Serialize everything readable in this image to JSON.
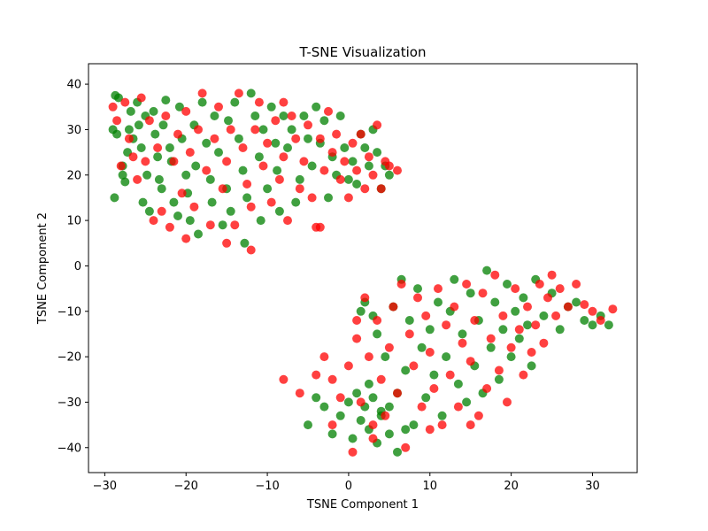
{
  "chart_data": {
    "type": "scatter",
    "title": "T-SNE Visualization",
    "xlabel": "TSNE Component 1",
    "ylabel": "TSNE Component 2",
    "xlim": [
      -32,
      35.5
    ],
    "ylim": [
      -45.5,
      44.5
    ],
    "xticks": [
      -30,
      -20,
      -10,
      0,
      10,
      20,
      30
    ],
    "yticks": [
      -40,
      -30,
      -20,
      -10,
      0,
      10,
      20,
      30,
      40
    ],
    "xtick_labels": [
      "−30",
      "−20",
      "−10",
      "0",
      "10",
      "20",
      "30"
    ],
    "ytick_labels": [
      "−40",
      "−30",
      "−20",
      "−10",
      "0",
      "10",
      "20",
      "30",
      "40"
    ],
    "grid": false,
    "legend": "none",
    "colors": {
      "green": "#008000",
      "red": "#ff0000"
    },
    "marker_alpha": 0.75,
    "series": [
      {
        "color": "green",
        "points": [
          [
            -29,
            30
          ],
          [
            -28.7,
            37.5
          ],
          [
            -28.3,
            37
          ],
          [
            -28.5,
            29
          ],
          [
            -27.8,
            22
          ],
          [
            -27.5,
            18.5
          ],
          [
            -27.2,
            25
          ],
          [
            -27,
            30
          ],
          [
            -26.8,
            34
          ],
          [
            -26.5,
            28
          ],
          [
            -26,
            36
          ],
          [
            -25.8,
            31
          ],
          [
            -25.5,
            26
          ],
          [
            -25,
            33
          ],
          [
            -24.8,
            20
          ],
          [
            -24.5,
            12
          ],
          [
            -24,
            34
          ],
          [
            -23.8,
            29
          ],
          [
            -23.5,
            24
          ],
          [
            -23,
            17
          ],
          [
            -22.8,
            31
          ],
          [
            -22.5,
            36.5
          ],
          [
            -22,
            26
          ],
          [
            -21.8,
            23
          ],
          [
            -21.5,
            14
          ],
          [
            -21,
            11
          ],
          [
            -20.8,
            35
          ],
          [
            -20.5,
            28
          ],
          [
            -20,
            20
          ],
          [
            -19.8,
            16
          ],
          [
            -19.5,
            10
          ],
          [
            -19,
            31
          ],
          [
            -18.8,
            22
          ],
          [
            -18.5,
            7
          ],
          [
            -18,
            36
          ],
          [
            -17.5,
            27
          ],
          [
            -17,
            19
          ],
          [
            -16.8,
            14
          ],
          [
            -16.5,
            33
          ],
          [
            -16,
            25
          ],
          [
            -15.5,
            9
          ],
          [
            -15,
            17
          ],
          [
            -14.8,
            32
          ],
          [
            -14.5,
            12
          ],
          [
            -14,
            36
          ],
          [
            -13.5,
            28
          ],
          [
            -13,
            21
          ],
          [
            -12.8,
            5
          ],
          [
            -12.5,
            15
          ],
          [
            -12,
            38
          ],
          [
            -11.5,
            33
          ],
          [
            -11,
            24
          ],
          [
            -10.8,
            10
          ],
          [
            -10.5,
            30
          ],
          [
            -10,
            17
          ],
          [
            -9.5,
            35
          ],
          [
            -9,
            27
          ],
          [
            -8.8,
            21
          ],
          [
            -8.5,
            12
          ],
          [
            -8,
            33
          ],
          [
            -7.5,
            26
          ],
          [
            -7,
            30
          ],
          [
            -6.5,
            14
          ],
          [
            -6,
            19
          ],
          [
            -5.5,
            33
          ],
          [
            -5,
            28
          ],
          [
            -4.5,
            22
          ],
          [
            -4,
            35
          ],
          [
            -3.5,
            27
          ],
          [
            -3,
            32
          ],
          [
            -2.5,
            15
          ],
          [
            -2,
            24
          ],
          [
            -1.5,
            20
          ],
          [
            -1,
            33
          ],
          [
            -0.5,
            26
          ],
          [
            0,
            19
          ],
          [
            0.5,
            23
          ],
          [
            1,
            18
          ],
          [
            1.5,
            29
          ],
          [
            2,
            26
          ],
          [
            2.5,
            22
          ],
          [
            3,
            30
          ],
          [
            3.5,
            25
          ],
          [
            4,
            17
          ],
          [
            4.5,
            22
          ],
          [
            5,
            20
          ],
          [
            -28.8,
            15
          ],
          [
            -27.8,
            20
          ],
          [
            -25.3,
            14
          ],
          [
            -23.3,
            19
          ],
          [
            1.5,
            -10
          ],
          [
            2,
            -8
          ],
          [
            2.5,
            -26
          ],
          [
            3,
            -11
          ],
          [
            3.5,
            -15
          ],
          [
            4,
            -32
          ],
          [
            4.5,
            -20
          ],
          [
            5,
            -37
          ],
          [
            5.5,
            -9
          ],
          [
            6,
            -28
          ],
          [
            6.5,
            -3
          ],
          [
            7,
            -23
          ],
          [
            7.5,
            -12
          ],
          [
            8,
            -35
          ],
          [
            8.5,
            -5
          ],
          [
            9,
            -18
          ],
          [
            9.5,
            -29
          ],
          [
            10,
            -14
          ],
          [
            10.5,
            -24
          ],
          [
            11,
            -8
          ],
          [
            11.5,
            -33
          ],
          [
            12,
            -20
          ],
          [
            12.5,
            -10
          ],
          [
            13,
            -3
          ],
          [
            13.5,
            -26
          ],
          [
            14,
            -15
          ],
          [
            14.5,
            -30
          ],
          [
            15,
            -6
          ],
          [
            15.5,
            -22
          ],
          [
            16,
            -12
          ],
          [
            16.5,
            -28
          ],
          [
            17,
            -1
          ],
          [
            17.5,
            -18
          ],
          [
            18,
            -8
          ],
          [
            18.5,
            -25
          ],
          [
            19,
            -14
          ],
          [
            19.5,
            -4
          ],
          [
            20,
            -20
          ],
          [
            20.5,
            -10
          ],
          [
            21,
            -16
          ],
          [
            21.5,
            -7
          ],
          [
            22,
            -13
          ],
          [
            22.5,
            -22
          ],
          [
            23,
            -3
          ],
          [
            24,
            -11
          ],
          [
            25,
            -6
          ],
          [
            26,
            -14
          ],
          [
            27,
            -9
          ],
          [
            28,
            -8
          ],
          [
            29,
            -12
          ],
          [
            30,
            -13
          ],
          [
            31,
            -11
          ],
          [
            32,
            -13
          ],
          [
            -5,
            -35
          ],
          [
            -4,
            -29
          ],
          [
            -3,
            -31
          ],
          [
            -2,
            -37
          ],
          [
            -1,
            -33
          ],
          [
            0,
            -30
          ],
          [
            0.5,
            -38
          ],
          [
            1,
            -28
          ],
          [
            1.5,
            -34
          ],
          [
            2,
            -31
          ],
          [
            2.5,
            -36
          ],
          [
            3,
            -29
          ],
          [
            3.5,
            -39
          ],
          [
            4,
            -33
          ],
          [
            5,
            -31
          ],
          [
            6,
            -41
          ],
          [
            7,
            -36
          ]
        ]
      },
      {
        "color": "red",
        "points": [
          [
            -29,
            35
          ],
          [
            -28.5,
            32
          ],
          [
            -28,
            22
          ],
          [
            -27.5,
            36
          ],
          [
            -27,
            28
          ],
          [
            -26.5,
            24
          ],
          [
            -26,
            19
          ],
          [
            -25.5,
            37
          ],
          [
            -25,
            23
          ],
          [
            -24.5,
            32
          ],
          [
            -24,
            10
          ],
          [
            -23.5,
            26
          ],
          [
            -23,
            12
          ],
          [
            -22.5,
            33
          ],
          [
            -22,
            8.5
          ],
          [
            -21.5,
            23
          ],
          [
            -21,
            29
          ],
          [
            -20.5,
            16
          ],
          [
            -20,
            34
          ],
          [
            -19.5,
            25
          ],
          [
            -19,
            13
          ],
          [
            -18.5,
            30
          ],
          [
            -18,
            38
          ],
          [
            -17.5,
            21
          ],
          [
            -17,
            9
          ],
          [
            -16.5,
            28
          ],
          [
            -16,
            35
          ],
          [
            -15.5,
            17
          ],
          [
            -15,
            23
          ],
          [
            -14.5,
            30
          ],
          [
            -14,
            9
          ],
          [
            -13.5,
            38
          ],
          [
            -13,
            26
          ],
          [
            -12.5,
            18
          ],
          [
            -12,
            13
          ],
          [
            -11.5,
            30
          ],
          [
            -11,
            36
          ],
          [
            -10.5,
            22
          ],
          [
            -10,
            27
          ],
          [
            -9.5,
            14
          ],
          [
            -9,
            32
          ],
          [
            -8.5,
            19
          ],
          [
            -8,
            24
          ],
          [
            -7.5,
            10
          ],
          [
            -7,
            33
          ],
          [
            -6.5,
            28
          ],
          [
            -6,
            17
          ],
          [
            -5.5,
            23
          ],
          [
            -5,
            31
          ],
          [
            -4.5,
            15
          ],
          [
            -4,
            8.5
          ],
          [
            -3.5,
            28
          ],
          [
            -3,
            21
          ],
          [
            -2.5,
            34
          ],
          [
            -2,
            25
          ],
          [
            -1.5,
            29
          ],
          [
            -1,
            19
          ],
          [
            -0.5,
            23
          ],
          [
            0,
            15
          ],
          [
            0.5,
            27
          ],
          [
            1,
            21
          ],
          [
            1.5,
            29
          ],
          [
            2,
            17
          ],
          [
            2.5,
            24
          ],
          [
            3,
            20
          ],
          [
            3.5,
            31
          ],
          [
            4,
            17
          ],
          [
            4.5,
            23
          ],
          [
            5,
            22
          ],
          [
            6,
            21
          ],
          [
            -12,
            3.5
          ],
          [
            -15,
            5
          ],
          [
            -20,
            6
          ],
          [
            -3.5,
            8.5
          ],
          [
            -8,
            36
          ],
          [
            -8,
            -25
          ],
          [
            -6,
            -28
          ],
          [
            -4,
            -24
          ],
          [
            -3,
            -20
          ],
          [
            -2,
            -35
          ],
          [
            -1,
            -29
          ],
          [
            0,
            -22
          ],
          [
            0.5,
            -41
          ],
          [
            1,
            -16
          ],
          [
            1.5,
            -30
          ],
          [
            2,
            -7
          ],
          [
            2.5,
            -20
          ],
          [
            3,
            -38
          ],
          [
            3.5,
            -12
          ],
          [
            4,
            -25
          ],
          [
            4.5,
            -33
          ],
          [
            5,
            -18
          ],
          [
            5.5,
            -9
          ],
          [
            6,
            -28
          ],
          [
            6.5,
            -4
          ],
          [
            7,
            -40
          ],
          [
            7.5,
            -15
          ],
          [
            8,
            -22
          ],
          [
            8.5,
            -7
          ],
          [
            9,
            -31
          ],
          [
            9.5,
            -11
          ],
          [
            10,
            -19
          ],
          [
            10.5,
            -27
          ],
          [
            11,
            -5
          ],
          [
            11.5,
            -35
          ],
          [
            12,
            -13
          ],
          [
            12.5,
            -24
          ],
          [
            13,
            -9
          ],
          [
            13.5,
            -31
          ],
          [
            14,
            -17
          ],
          [
            14.5,
            -4
          ],
          [
            15,
            -21
          ],
          [
            15.5,
            -12
          ],
          [
            16,
            -33
          ],
          [
            16.5,
            -6
          ],
          [
            17,
            -27
          ],
          [
            17.5,
            -16
          ],
          [
            18,
            -2
          ],
          [
            18.5,
            -23
          ],
          [
            19,
            -11
          ],
          [
            19.5,
            -30
          ],
          [
            20,
            -18
          ],
          [
            20.5,
            -5
          ],
          [
            21,
            -14
          ],
          [
            21.5,
            -24
          ],
          [
            22,
            -9
          ],
          [
            22.5,
            -19
          ],
          [
            23,
            -13
          ],
          [
            23.5,
            -4
          ],
          [
            24,
            -17
          ],
          [
            24.5,
            -7
          ],
          [
            25,
            -2
          ],
          [
            25.5,
            -11
          ],
          [
            26,
            -5
          ],
          [
            27,
            -9
          ],
          [
            28,
            -4
          ],
          [
            29,
            -8.5
          ],
          [
            30,
            -10
          ],
          [
            31,
            -12
          ],
          [
            32.5,
            -9.5
          ],
          [
            1,
            -12
          ],
          [
            -2,
            -25
          ],
          [
            3,
            -35
          ],
          [
            10,
            -36
          ],
          [
            15,
            -35
          ]
        ]
      }
    ]
  }
}
